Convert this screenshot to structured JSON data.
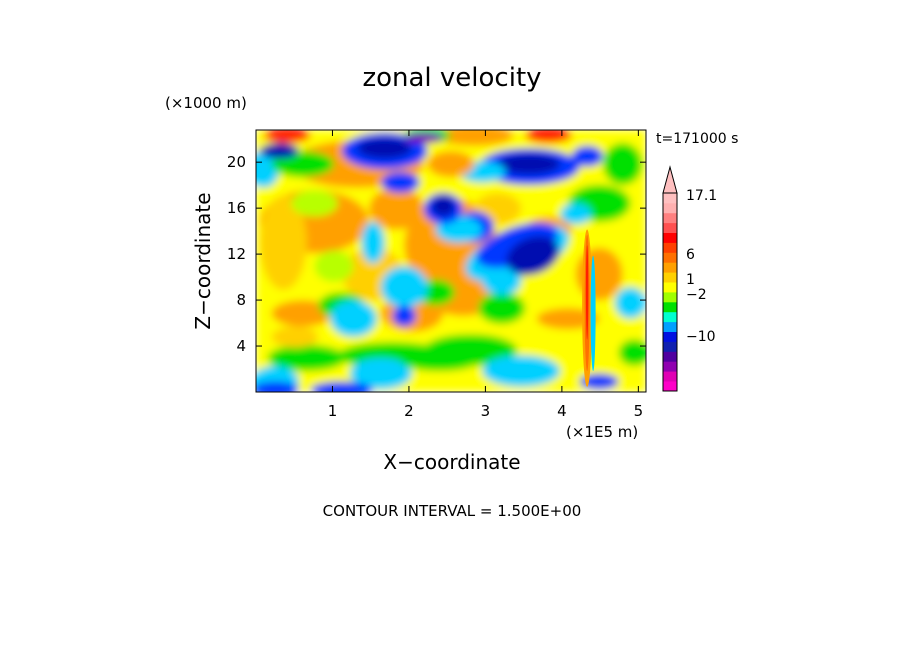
{
  "chart_data": {
    "type": "heatmap",
    "title": "zonal velocity",
    "xlabel": "X−coordinate",
    "ylabel": "Z−coordinate",
    "x_unit": "(×1E5 m)",
    "y_unit": "(×1000 m)",
    "time_label": "t=171000 s",
    "footer": "CONTOUR INTERVAL = 1.500E+00",
    "xlim": [
      0,
      5.1
    ],
    "ylim": [
      0,
      22.8
    ],
    "x_ticks": [
      "1",
      "2",
      "3",
      "4",
      "5"
    ],
    "y_ticks": [
      "4",
      "8",
      "12",
      "16",
      "20"
    ],
    "colorbar": {
      "labels": [
        "17.1",
        "6",
        "1",
        "−2",
        "−10"
      ],
      "colors": [
        "#ff00c8",
        "#e000b4",
        "#9000b0",
        "#5000a0",
        "#1020b0",
        "#0010e0",
        "#00a0ff",
        "#00ffd0",
        "#00e000",
        "#a0ff00",
        "#ffff00",
        "#ffd000",
        "#ffa000",
        "#ff7000",
        "#ff4000",
        "#ff0000",
        "#ff5050",
        "#ff8080",
        "#ffb0b0",
        "#ffc0c0"
      ]
    },
    "grid": false,
    "legend": "right"
  }
}
